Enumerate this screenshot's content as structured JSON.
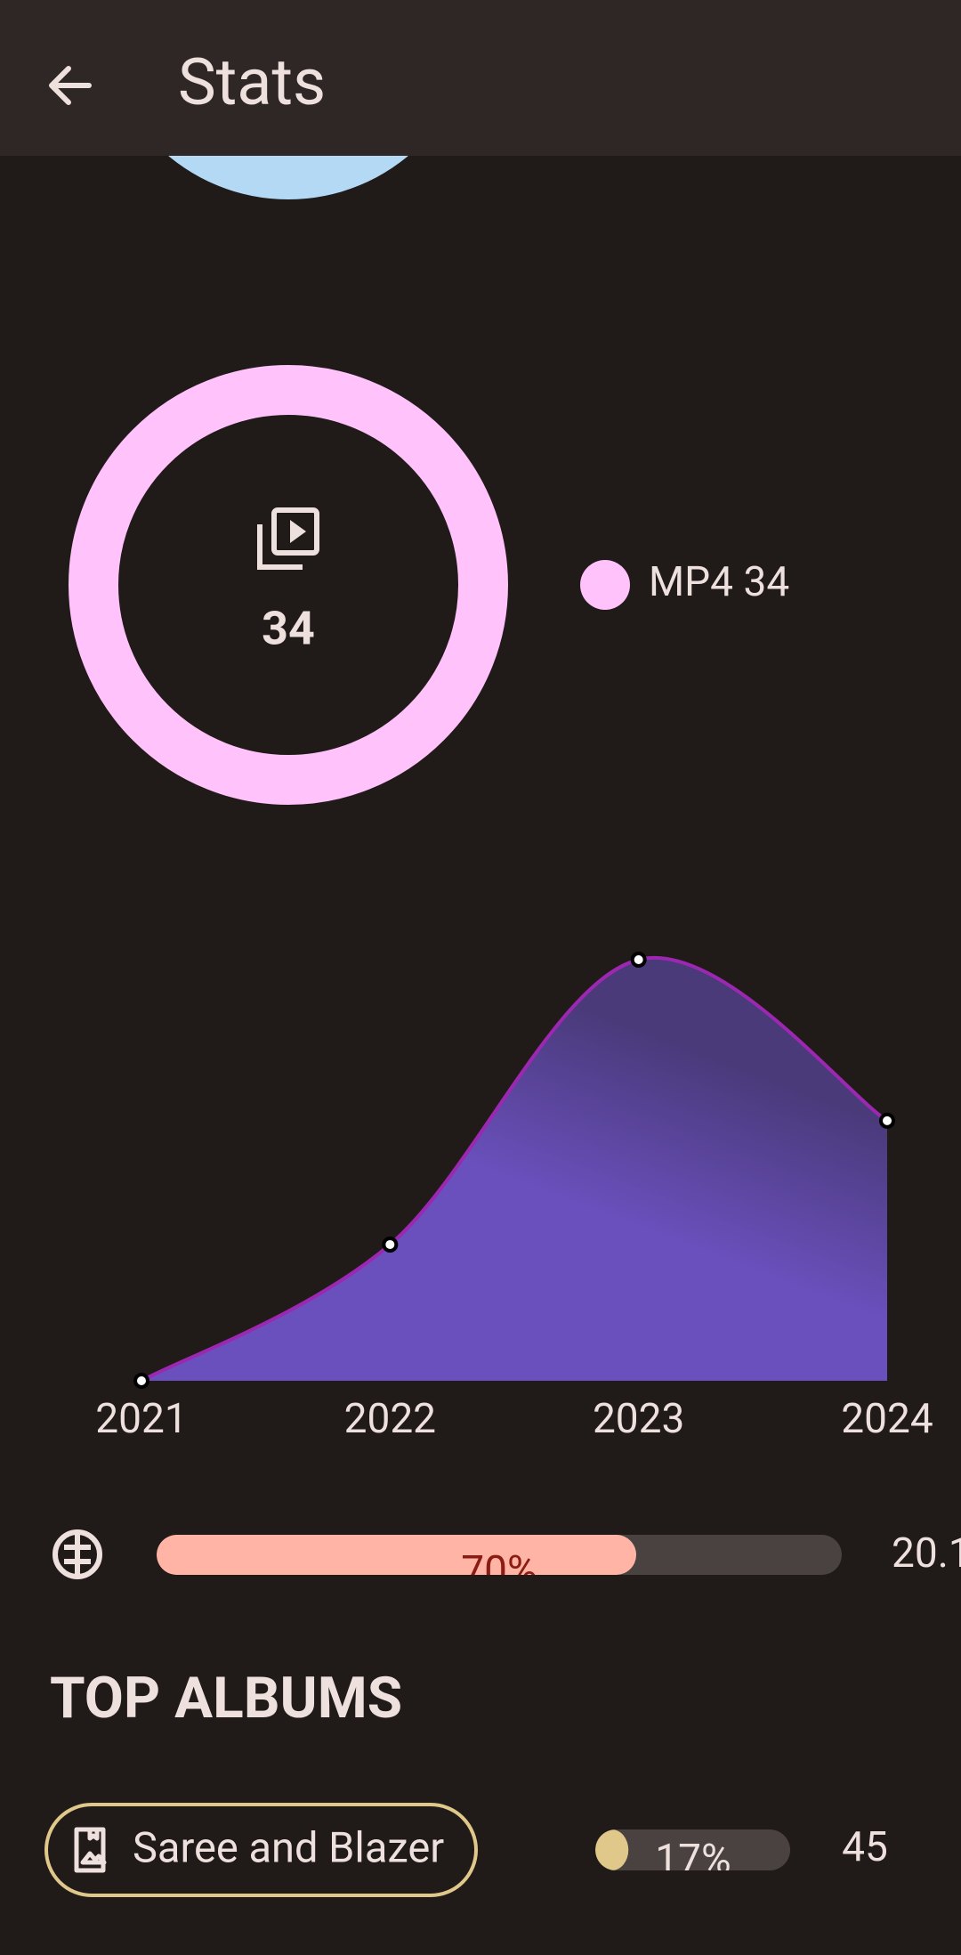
{
  "app_bar": {
    "title": "Stats"
  },
  "donut_chart": {
    "type": "pie",
    "categories": [
      "MP4"
    ],
    "values": [
      34
    ],
    "colors": [
      "#ffc2fb"
    ]
  },
  "area_chart": {
    "type": "area",
    "categories": [
      "2021",
      "2022",
      "2023",
      "2024"
    ],
    "values": [
      0,
      11,
      34,
      21
    ],
    "color": "#9c27b0",
    "fill": "#6a50bd"
  },
  "progress": {
    "value": 70,
    "value_label": "70%",
    "amount": "20.1",
    "color": "#ffb4a6"
  },
  "top_albums": {
    "title": "TOP ALBUMS",
    "items": [
      {
        "name": "Saree and Blazer",
        "share": 17,
        "share_label": "17%",
        "count": 45,
        "color": "#e0c88a"
      }
    ]
  }
}
